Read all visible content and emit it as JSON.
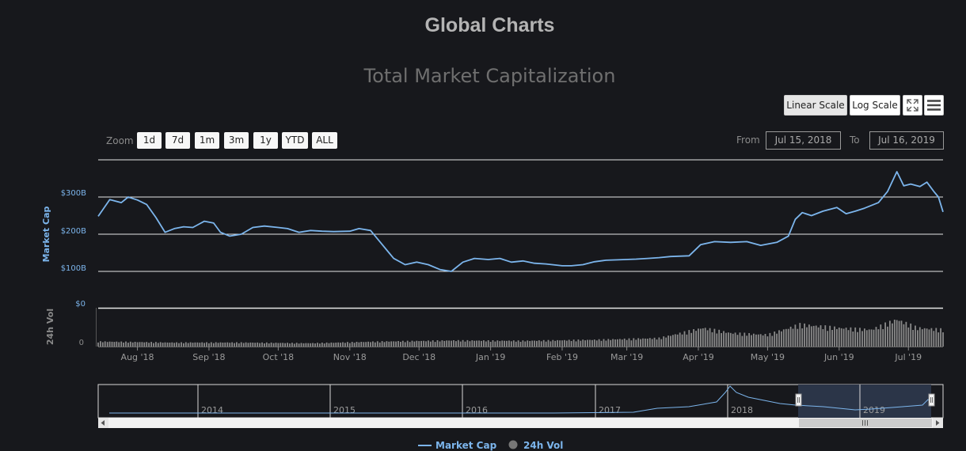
{
  "header": {
    "page_title": "Global Charts"
  },
  "toolbar": {
    "linear_scale_label": "Linear Scale",
    "log_scale_label": "Log Scale",
    "fullscreen_icon": "fullscreen-icon",
    "menu_icon": "hamburger-menu-icon",
    "active_scale": "linear"
  },
  "range_selector": {
    "zoom_label": "Zoom",
    "buttons": [
      "1d",
      "7d",
      "1m",
      "3m",
      "1y",
      "YTD",
      "ALL"
    ],
    "from_label": "From",
    "from_value": "Jul 15, 2018",
    "to_label": "To",
    "to_value": "Jul 16, 2019"
  },
  "navigator": {
    "year_labels": [
      "2014",
      "2015",
      "2016",
      "2017",
      "2018",
      "2019"
    ]
  },
  "colors": {
    "background": "#17181c",
    "market_cap_line": "#7cb5ec",
    "volume_bar": "#8a8a8a",
    "axis_label": "#7cb5ec",
    "navigator_selection": "#2b3548"
  },
  "chart_data": {
    "type": "line",
    "title": "Total Market Capitalization",
    "x_range": [
      "2018-07-15",
      "2019-07-16"
    ],
    "x_tick_labels": [
      "Aug '18",
      "Sep '18",
      "Oct '18",
      "Nov '18",
      "Dec '18",
      "Jan '19",
      "Feb '19",
      "Mar '19",
      "Apr '19",
      "May '19",
      "Jun '19",
      "Jul '19"
    ],
    "y_axis": {
      "label": "Market Cap",
      "tick_labels": [
        "$100B",
        "$200B",
        "$300B"
      ],
      "grid": true
    },
    "volume_axis": {
      "label": "24h Vol",
      "tick_labels": [
        "$0",
        "0"
      ]
    },
    "legend": {
      "position": "bottom-center",
      "entries": [
        "Market Cap",
        "24h Vol"
      ]
    },
    "series": [
      {
        "name": "Market Cap",
        "unit": "billion USD",
        "points": [
          [
            "2018-07-15",
            248
          ],
          [
            "2018-07-20",
            293
          ],
          [
            "2018-07-25",
            285
          ],
          [
            "2018-07-28",
            300
          ],
          [
            "2018-08-01",
            292
          ],
          [
            "2018-08-05",
            280
          ],
          [
            "2018-08-09",
            245
          ],
          [
            "2018-08-13",
            205
          ],
          [
            "2018-08-17",
            215
          ],
          [
            "2018-08-21",
            220
          ],
          [
            "2018-08-25",
            218
          ],
          [
            "2018-08-30",
            235
          ],
          [
            "2018-09-03",
            230
          ],
          [
            "2018-09-06",
            205
          ],
          [
            "2018-09-10",
            195
          ],
          [
            "2018-09-15",
            200
          ],
          [
            "2018-09-20",
            218
          ],
          [
            "2018-09-25",
            222
          ],
          [
            "2018-10-01",
            218
          ],
          [
            "2018-10-05",
            215
          ],
          [
            "2018-10-10",
            205
          ],
          [
            "2018-10-15",
            210
          ],
          [
            "2018-10-20",
            208
          ],
          [
            "2018-10-25",
            207
          ],
          [
            "2018-11-01",
            208
          ],
          [
            "2018-11-05",
            215
          ],
          [
            "2018-11-10",
            210
          ],
          [
            "2018-11-14",
            180
          ],
          [
            "2018-11-18",
            150
          ],
          [
            "2018-11-20",
            135
          ],
          [
            "2018-11-25",
            118
          ],
          [
            "2018-11-30",
            125
          ],
          [
            "2018-12-05",
            118
          ],
          [
            "2018-12-10",
            105
          ],
          [
            "2018-12-15",
            100
          ],
          [
            "2018-12-20",
            125
          ],
          [
            "2018-12-25",
            135
          ],
          [
            "2018-12-31",
            132
          ],
          [
            "2019-01-05",
            135
          ],
          [
            "2019-01-10",
            125
          ],
          [
            "2019-01-15",
            128
          ],
          [
            "2019-01-20",
            122
          ],
          [
            "2019-01-25",
            120
          ],
          [
            "2019-02-01",
            115
          ],
          [
            "2019-02-05",
            115
          ],
          [
            "2019-02-10",
            118
          ],
          [
            "2019-02-15",
            126
          ],
          [
            "2019-02-20",
            130
          ],
          [
            "2019-02-25",
            131
          ],
          [
            "2019-03-05",
            133
          ],
          [
            "2019-03-10",
            135
          ],
          [
            "2019-03-15",
            137
          ],
          [
            "2019-03-20",
            140
          ],
          [
            "2019-03-28",
            142
          ],
          [
            "2019-04-02",
            172
          ],
          [
            "2019-04-08",
            180
          ],
          [
            "2019-04-15",
            178
          ],
          [
            "2019-04-22",
            180
          ],
          [
            "2019-04-28",
            170
          ],
          [
            "2019-05-05",
            178
          ],
          [
            "2019-05-10",
            195
          ],
          [
            "2019-05-13",
            240
          ],
          [
            "2019-05-16",
            258
          ],
          [
            "2019-05-20",
            250
          ],
          [
            "2019-05-25",
            262
          ],
          [
            "2019-05-31",
            272
          ],
          [
            "2019-06-04",
            255
          ],
          [
            "2019-06-08",
            262
          ],
          [
            "2019-06-12",
            270
          ],
          [
            "2019-06-18",
            285
          ],
          [
            "2019-06-22",
            315
          ],
          [
            "2019-06-26",
            368
          ],
          [
            "2019-06-29",
            330
          ],
          [
            "2019-07-02",
            335
          ],
          [
            "2019-07-06",
            328
          ],
          [
            "2019-07-09",
            340
          ],
          [
            "2019-07-12",
            315
          ],
          [
            "2019-07-14",
            300
          ],
          [
            "2019-07-16",
            260
          ]
        ]
      },
      {
        "name": "24h Vol",
        "unit": "relative",
        "points": [
          [
            "2018-07-15",
            0.15
          ],
          [
            "2018-08-15",
            0.12
          ],
          [
            "2018-09-15",
            0.12
          ],
          [
            "2018-10-15",
            0.1
          ],
          [
            "2018-11-15",
            0.15
          ],
          [
            "2018-12-15",
            0.18
          ],
          [
            "2019-01-15",
            0.17
          ],
          [
            "2019-02-15",
            0.2
          ],
          [
            "2019-03-15",
            0.25
          ],
          [
            "2019-04-03",
            0.55
          ],
          [
            "2019-04-15",
            0.4
          ],
          [
            "2019-05-01",
            0.35
          ],
          [
            "2019-05-15",
            0.65
          ],
          [
            "2019-06-01",
            0.55
          ],
          [
            "2019-06-15",
            0.5
          ],
          [
            "2019-06-26",
            0.8
          ],
          [
            "2019-07-05",
            0.55
          ],
          [
            "2019-07-16",
            0.5
          ]
        ]
      }
    ]
  }
}
